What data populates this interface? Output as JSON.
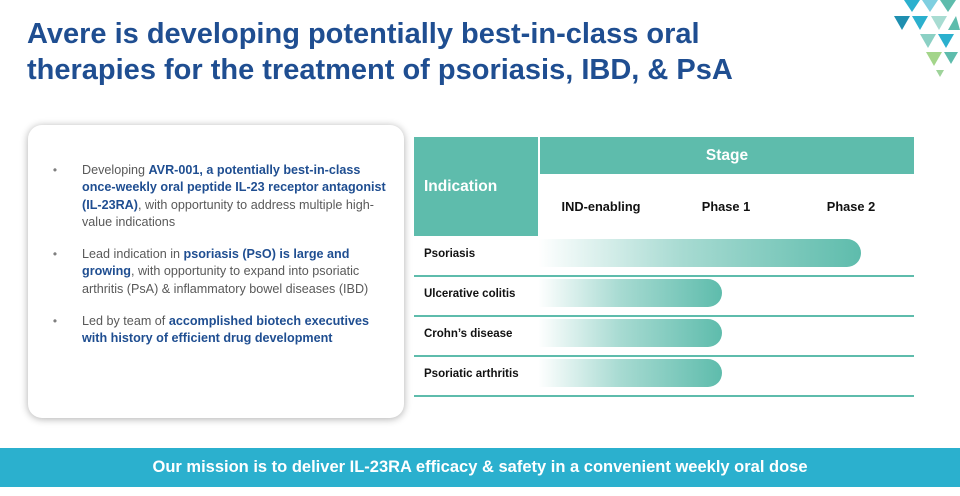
{
  "title": {
    "line1": "Avere is developing potentially best-in-class oral",
    "line2": "therapies for the treatment of psoriasis, IBD, & PsA"
  },
  "colors": {
    "title": "#1f4e91",
    "highlight": "#1f4e91",
    "teal": "#5ebcac",
    "banner": "#2bb0ce",
    "body_text": "#595959"
  },
  "logo": {
    "icon": "triangle-mosaic-logo-icon"
  },
  "bullets": [
    {
      "marker": "•",
      "pre": "Developing ",
      "highlight": "AVR-001, a potentially best-in-class once-weekly oral peptide IL-23 receptor antagonist (IL-23RA)",
      "post": ", with opportunity to address multiple high-value indications"
    },
    {
      "marker": "•",
      "pre": "Lead indication in ",
      "highlight": "psoriasis (PsO) is large and growing",
      "post": ", with opportunity to expand into psoriatic arthritis (PsA) & inflammatory bowel diseases (IBD)"
    },
    {
      "marker": "•",
      "pre": "Led by team of ",
      "highlight": "accomplished biotech executives with history of efficient drug development",
      "post": ""
    }
  ],
  "pipeline": {
    "indication_header": "Indication",
    "stage_header": "Stage",
    "phases": [
      "IND-enabling",
      "Phase 1",
      "Phase 2"
    ],
    "rows": [
      {
        "indication": "Psoriasis",
        "progress_pct": 86
      },
      {
        "indication": "Ulcerative colitis",
        "progress_pct": 49
      },
      {
        "indication": "Crohn’s disease",
        "progress_pct": 49
      },
      {
        "indication": "Psoriatic arthritis",
        "progress_pct": 49
      }
    ]
  },
  "mission": "Our mission is to deliver IL-23RA efficacy & safety in a convenient weekly oral dose"
}
